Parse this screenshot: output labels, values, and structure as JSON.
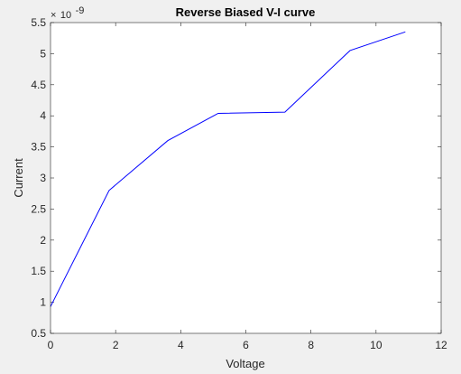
{
  "chart_data": {
    "type": "line",
    "title": "Reverse Biased V-I curve",
    "xlabel": "Voltage",
    "ylabel": "Current",
    "y_multiplier_prefix": "×",
    "y_multiplier_base": "10",
    "y_multiplier_exponent": "-9",
    "xlim": [
      0,
      12
    ],
    "ylim": [
      0.5,
      5.5
    ],
    "x_ticks": [
      0,
      2,
      4,
      6,
      8,
      10,
      12
    ],
    "y_ticks": [
      0.5,
      1,
      1.5,
      2,
      2.5,
      3,
      3.5,
      4,
      4.5,
      5,
      5.5
    ],
    "x_tick_labels": [
      "0",
      "2",
      "4",
      "6",
      "8",
      "10",
      "12"
    ],
    "y_tick_labels": [
      "0.5",
      "1",
      "1.5",
      "2",
      "2.5",
      "3",
      "3.5",
      "4",
      "4.5",
      "5",
      "5.5"
    ],
    "grid": false,
    "series": [
      {
        "color": "#0000ff",
        "x": [
          0,
          1.8,
          3.6,
          5.15,
          7.2,
          9.2,
          10.9
        ],
        "y": [
          0.93,
          2.8,
          3.6,
          4.04,
          4.06,
          5.05,
          5.35
        ]
      }
    ]
  }
}
